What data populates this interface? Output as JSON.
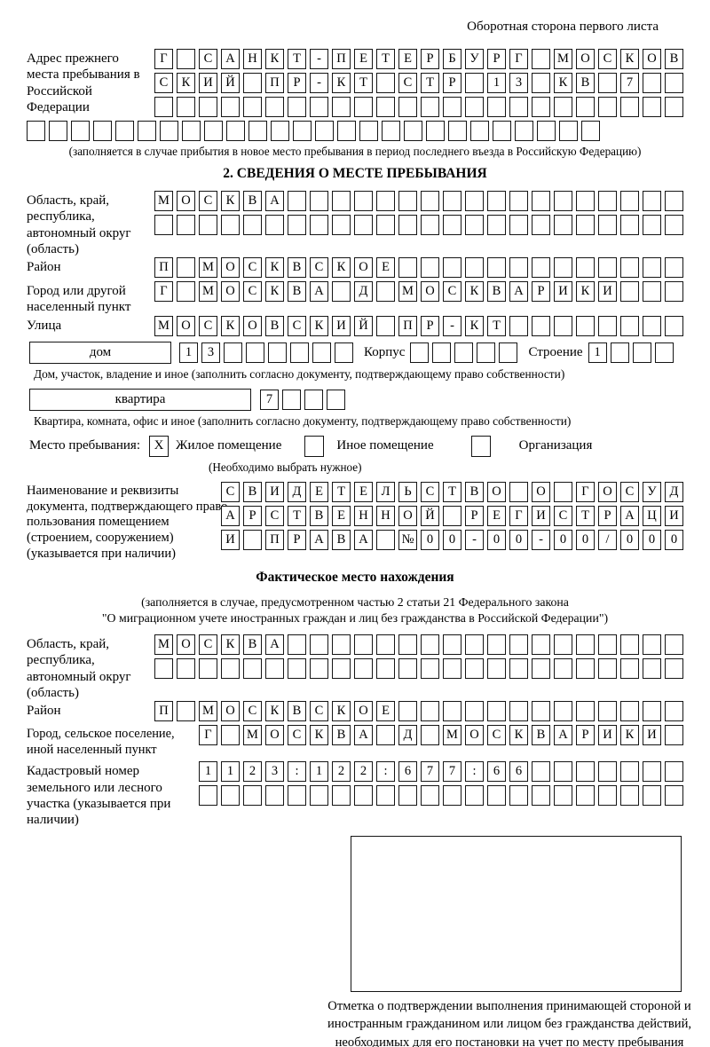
{
  "page": {
    "header_note": "Оборотная сторона первого листа"
  },
  "prev_address": {
    "label": "Адрес прежнего места пребывания в Российской Федерации",
    "rows": [
      "Г САНКТ-ПЕТЕРБУРГ МОСКОВ",
      "СКИЙ ПР-КТ СТР 13 КВ 7  ",
      "                        "
    ],
    "extra_row": "                          ",
    "note": "(заполняется в случае прибытия в новое место пребывания в период последнего въезда в Российскую Федерацию)"
  },
  "section2": {
    "title": "2. СВЕДЕНИЯ О МЕСТЕ ПРЕБЫВАНИЯ",
    "region": {
      "label": "Область, край, республика, автономный округ (область)",
      "rows": [
        "МОСКВА                  ",
        "                        "
      ]
    },
    "district": {
      "label": "Район",
      "row": "П МОСКВСКОЕ             "
    },
    "city": {
      "label": "Город или другой населенный пункт",
      "row": "Г МОСКВА Д МОСКВАРИКИ   "
    },
    "street": {
      "label": "Улица",
      "row": "МОСКОВСКИЙ ПР-КТ        "
    },
    "house": {
      "box_label": "дом",
      "cells": "13      ",
      "korpus_label": "Корпус",
      "korpus_cells": "     ",
      "stroenie_label": "Строение",
      "stroenie_cells": "1   "
    },
    "house_note": "Дом, участок, владение и иное (заполнить согласно документу, подтверждающему право собственности)",
    "apartment": {
      "box_label": "квартира",
      "cells": "7   "
    },
    "apartment_note": "Квартира, комната, офис и иное (заполнить согласно документу, подтверждающему право собственности)",
    "stay_type": {
      "label": "Место пребывания:",
      "options": [
        {
          "label": "Жилое помещение",
          "checked": "X"
        },
        {
          "label": "Иное помещение",
          "checked": ""
        },
        {
          "label": "Организация",
          "checked": ""
        }
      ],
      "note": "(Необходимо выбрать нужное)"
    },
    "document": {
      "label": "Наименование и реквизиты документа, подтверждающего право пользования помещением (строением, сооружением) (указывается при наличии)",
      "rows": [
        "СВИДЕТЕЛЬСТВО О ГОСУД",
        "АРСТВЕННОЙ РЕГИСТРАЦИ",
        "И ПРАВА №00-00-00/000"
      ]
    }
  },
  "actual_location": {
    "title": "Фактическое место нахождения",
    "note_line1": "(заполняется в случае, предусмотренном частью 2 статьи 21 Федерального закона",
    "note_line2": "\"О миграционном учете иностранных граждан и лиц без гражданства в Российской Федерации\")",
    "region": {
      "label": "Область, край, республика, автономный округ (область)",
      "rows": [
        "МОСКВА                  ",
        "                        "
      ]
    },
    "district": {
      "label": "Район",
      "row": "П МОСКВСКОЕ             "
    },
    "city": {
      "label": "Город, сельское поселение, иной населенный пункт",
      "row": "Г МОСКВА Д МОСКВАРИКИ "
    },
    "cadastral": {
      "label": "Кадастровый номер земельного или лесного участка (указывается при наличии)",
      "rows": [
        "1123:122:677:66       ",
        "                      "
      ]
    },
    "stamp_note": "Отметка о подтверждении выполнения принимающей стороной и иностранным гражданином или лицом без гражданства действий, необходимых для его постановки на учет по месту пребывания"
  }
}
